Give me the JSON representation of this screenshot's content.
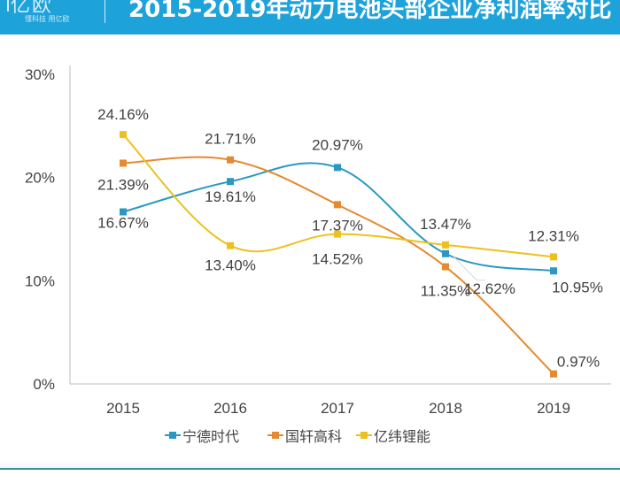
{
  "header": {
    "logo": "亿欧",
    "tagline": "懂科技 用亿欧",
    "title": "2015-2019年动力电池头部企业净利润率对比"
  },
  "colors": {
    "header_bg": "#1ea2da",
    "series": [
      "#2a98c2",
      "#e58a2e",
      "#ecc11f"
    ]
  },
  "chart_data": {
    "type": "line",
    "title": "2015-2019年动力电池头部企业净利润率对比",
    "xlabel": "",
    "ylabel": "",
    "categories": [
      "2015",
      "2016",
      "2017",
      "2018",
      "2019"
    ],
    "ylim": [
      0,
      30
    ],
    "yticks": [
      0,
      10,
      20,
      30
    ],
    "ytick_labels": [
      "0%",
      "10%",
      "20%",
      "30%"
    ],
    "grid": false,
    "smooth": true,
    "legend_position": "bottom",
    "series": [
      {
        "name": "宁德时代",
        "values": [
          16.67,
          19.61,
          20.97,
          12.62,
          10.95
        ],
        "labels": [
          "16.67%",
          "19.61%",
          "20.97%",
          "12.62%",
          "10.95%"
        ]
      },
      {
        "name": "国轩高科",
        "values": [
          21.39,
          21.71,
          17.37,
          11.35,
          0.97
        ],
        "labels": [
          "21.39%",
          "21.71%",
          "17.37%",
          "11.35%",
          "0.97%"
        ]
      },
      {
        "name": "亿纬锂能",
        "values": [
          24.16,
          13.4,
          14.52,
          13.47,
          12.31
        ],
        "labels": [
          "24.16%",
          "13.40%",
          "14.52%",
          "13.47%",
          "12.31%"
        ]
      }
    ]
  }
}
